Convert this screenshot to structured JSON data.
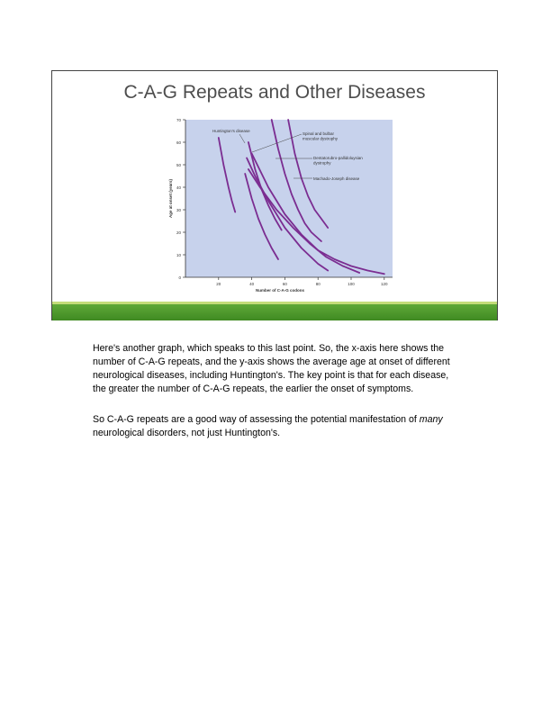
{
  "slide": {
    "title": "C-A-G Repeats and Other Diseases"
  },
  "chart_data": {
    "type": "line",
    "title": "",
    "xlabel": "Number of C-A-G codons",
    "ylabel": "Age at onset (years)",
    "xlim": [
      0,
      125
    ],
    "ylim": [
      0,
      70
    ],
    "x_ticks": [
      "20",
      "40",
      "60",
      "80",
      "100",
      "120"
    ],
    "y_ticks": [
      "0",
      "10",
      "20",
      "30",
      "40",
      "50",
      "60",
      "70"
    ],
    "grid": false,
    "line_color": "#7b2d91",
    "background_color": "#c7d2ec",
    "labels": [
      {
        "text": "Huntington's disease"
      },
      {
        "text": "Spinal and bulbar muscular dystrophy"
      },
      {
        "text": "Dentatorubro-pallidoluysian dystrophy"
      },
      {
        "text": "Machado-Joseph disease"
      }
    ],
    "series": [
      {
        "x": [
          20,
          23,
          26,
          28,
          30
        ],
        "y": [
          62,
          50,
          40,
          34,
          29
        ]
      },
      {
        "x": [
          36,
          40,
          44,
          48,
          52,
          56
        ],
        "y": [
          46,
          35,
          26,
          19,
          13,
          8
        ]
      },
      {
        "x": [
          38,
          42,
          46,
          50,
          54,
          58
        ],
        "y": [
          60,
          48,
          39,
          32,
          26,
          21
        ]
      },
      {
        "x": [
          37,
          42,
          50,
          60,
          70,
          80,
          86
        ],
        "y": [
          53,
          45,
          34,
          22,
          13,
          6,
          3
        ]
      },
      {
        "x": [
          52,
          56,
          60,
          64,
          68,
          72,
          76,
          82
        ],
        "y": [
          70,
          57,
          46,
          37,
          30,
          24,
          20,
          16
        ]
      },
      {
        "x": [
          40,
          50,
          60,
          70,
          80,
          90,
          100,
          110,
          120
        ],
        "y": [
          55,
          40,
          28,
          19,
          12,
          8,
          5,
          3,
          1.5
        ]
      },
      {
        "x": [
          38,
          45,
          55,
          65,
          75,
          85,
          95,
          105
        ],
        "y": [
          48,
          40,
          30,
          22,
          15,
          9,
          5,
          2
        ]
      },
      {
        "x": [
          62,
          66,
          70,
          74,
          78,
          82,
          86
        ],
        "y": [
          70,
          55,
          44,
          36,
          30,
          26,
          22
        ]
      }
    ]
  },
  "notes": {
    "paragraph1": "Here's another graph, which speaks to this last point. So, the x-axis here shows the number of C-A-G repeats, and the y-axis shows the average age at onset of different neurological diseases, including Huntington's. The key point is that for each disease, the greater the number of C-A-G repeats, the earlier the onset of symptoms.",
    "paragraph2_prefix": "So C-A-G repeats are a good way of assessing the potential manifestation of ",
    "paragraph2_emphasis": "many",
    "paragraph2_suffix": " neurological disorders, not just Huntington's."
  }
}
